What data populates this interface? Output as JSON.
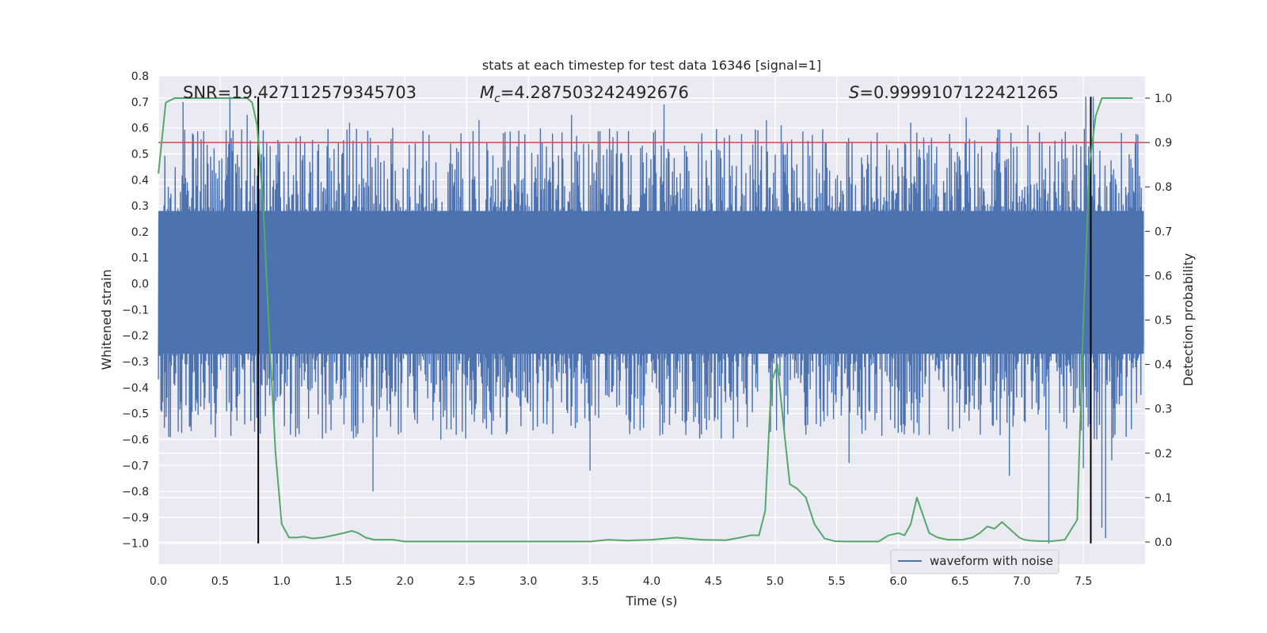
{
  "chart_data": {
    "type": "line",
    "title": "stats at each timestep for test data 16346 [signal=1]",
    "xlabel": "Time (s)",
    "ylabel": "Whitened strain",
    "ylabel_right": "Detection probability",
    "xlim": [
      0.0,
      8.0
    ],
    "ylim": [
      -1.08,
      0.8
    ],
    "ylim_right": [
      -0.05,
      1.05
    ],
    "x_ticks": [
      "0.0",
      "0.5",
      "1.0",
      "1.5",
      "2.0",
      "2.5",
      "3.0",
      "3.5",
      "4.0",
      "4.5",
      "5.0",
      "5.5",
      "6.0",
      "6.5",
      "7.0",
      "7.5"
    ],
    "y_ticks": [
      "0.8",
      "0.7",
      "0.6",
      "0.5",
      "0.4",
      "0.3",
      "0.2",
      "0.1",
      "0.0",
      "−0.1",
      "−0.2",
      "−0.3",
      "−0.4",
      "−0.5",
      "−0.6",
      "−0.7",
      "−0.8",
      "−0.9",
      "−1.0"
    ],
    "y_ticks_right": [
      "1.0",
      "0.9",
      "0.8",
      "0.7",
      "0.6",
      "0.5",
      "0.4",
      "0.3",
      "0.2",
      "0.1",
      "0.0"
    ],
    "annotations": {
      "snr": "SNR=19.427112579345703",
      "mc_symbol": "M",
      "mc_sub": "c",
      "mc_value": "=4.287503242492676",
      "s_symbol": "S",
      "s_value": "=0.9999107122421265"
    },
    "legend": {
      "label": "waveform with noise",
      "location": "lower-right"
    },
    "threshold_right": 0.9,
    "signal_bounds_x": [
      0.81,
      7.56
    ],
    "signal_bounds_y": [
      -1.0,
      0.72
    ],
    "waveform": {
      "name": "waveform with noise",
      "x_range": [
        0.0,
        7.99
      ],
      "band_upper": [
        0.28,
        0.32
      ],
      "band_lower": [
        -0.27,
        -0.31
      ],
      "spikes": [
        [
          0.2,
          0.7
        ],
        [
          0.58,
          0.72
        ],
        [
          0.72,
          0.65
        ],
        [
          0.78,
          -0.57
        ],
        [
          1.55,
          0.62
        ],
        [
          1.74,
          -0.8
        ],
        [
          1.9,
          0.6
        ],
        [
          2.29,
          -0.6
        ],
        [
          2.6,
          0.63
        ],
        [
          3.35,
          0.65
        ],
        [
          3.5,
          -0.72
        ],
        [
          4.1,
          0.69
        ],
        [
          4.93,
          0.63
        ],
        [
          5.05,
          0.61
        ],
        [
          5.6,
          -0.69
        ],
        [
          6.1,
          0.62
        ],
        [
          6.55,
          0.64
        ],
        [
          6.9,
          -0.74
        ],
        [
          7.05,
          0.61
        ],
        [
          7.22,
          -1.0
        ],
        [
          7.5,
          -0.71
        ],
        [
          7.52,
          0.72
        ],
        [
          7.58,
          0.72
        ],
        [
          7.65,
          -0.94
        ],
        [
          7.68,
          -0.98
        ],
        [
          7.73,
          -0.68
        ]
      ],
      "color": "#4c72b0"
    },
    "probability": {
      "name": "Detection probability",
      "x": [
        0.0,
        0.06,
        0.13,
        0.2,
        0.3,
        0.4,
        0.5,
        0.6,
        0.66,
        0.72,
        0.76,
        0.8,
        0.85,
        0.9,
        0.95,
        1.0,
        1.06,
        1.12,
        1.18,
        1.25,
        1.33,
        1.42,
        1.5,
        1.57,
        1.62,
        1.68,
        1.75,
        1.82,
        1.9,
        2.0,
        2.2,
        2.5,
        2.8,
        3.0,
        3.2,
        3.5,
        3.65,
        3.8,
        4.0,
        4.2,
        4.4,
        4.6,
        4.72,
        4.8,
        4.87,
        4.92,
        4.97,
        5.02,
        5.07,
        5.12,
        5.18,
        5.25,
        5.32,
        5.4,
        5.48,
        5.56,
        5.66,
        5.76,
        5.84,
        5.92,
        6.0,
        6.05,
        6.1,
        6.15,
        6.2,
        6.25,
        6.32,
        6.4,
        6.52,
        6.6,
        6.66,
        6.72,
        6.78,
        6.84,
        6.9,
        6.98,
        7.02,
        7.07,
        7.15,
        7.25,
        7.35,
        7.45,
        7.5,
        7.55,
        7.6,
        7.65,
        7.68,
        7.9
      ],
      "y": [
        0.83,
        0.99,
        1.0,
        1.0,
        1.0,
        1.0,
        1.0,
        1.0,
        1.0,
        1.0,
        0.99,
        0.94,
        0.76,
        0.46,
        0.2,
        0.04,
        0.01,
        0.01,
        0.012,
        0.008,
        0.01,
        0.015,
        0.02,
        0.025,
        0.02,
        0.01,
        0.005,
        0.005,
        0.005,
        0.001,
        0.001,
        0.001,
        0.001,
        0.001,
        0.001,
        0.001,
        0.005,
        0.003,
        0.005,
        0.01,
        0.005,
        0.004,
        0.01,
        0.015,
        0.015,
        0.07,
        0.36,
        0.4,
        0.26,
        0.13,
        0.12,
        0.1,
        0.04,
        0.008,
        0.002,
        0.001,
        0.001,
        0.001,
        0.001,
        0.015,
        0.02,
        0.015,
        0.04,
        0.1,
        0.06,
        0.02,
        0.01,
        0.005,
        0.005,
        0.01,
        0.02,
        0.035,
        0.03,
        0.045,
        0.03,
        0.01,
        0.005,
        0.003,
        0.002,
        0.002,
        0.005,
        0.05,
        0.5,
        0.85,
        0.96,
        1.0,
        1.0,
        1.0
      ],
      "color": "#55a868"
    },
    "threshold_color": "#c44e52",
    "bounds_color": "#000000",
    "grid": true
  }
}
